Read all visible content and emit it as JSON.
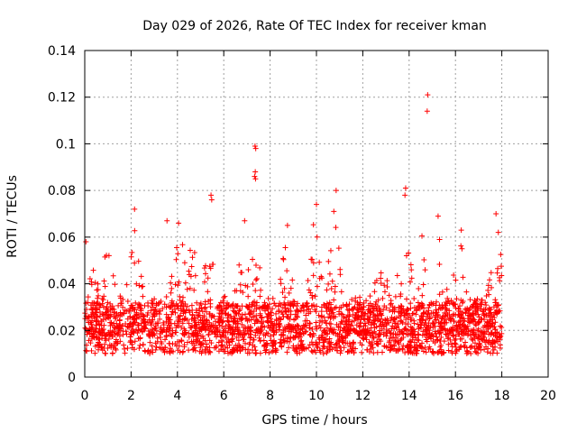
{
  "chart_data": {
    "type": "scatter",
    "title": "Day 029 of 2026, Rate Of TEC Index for receiver kman",
    "xlabel": "GPS time / hours",
    "ylabel": "ROTI / TECUs",
    "xlim": [
      0,
      20
    ],
    "ylim": [
      0,
      0.14
    ],
    "xticks": [
      "0",
      "2",
      "4",
      "6",
      "8",
      "10",
      "12",
      "14",
      "16",
      "18",
      "20"
    ],
    "yticks": [
      "0",
      "0.02",
      "0.04",
      "0.06",
      "0.08",
      "0.1",
      "0.12",
      "0.14"
    ],
    "grid": true,
    "marker": "+",
    "color": "#ff0000",
    "data_range_hours": [
      0,
      18
    ],
    "baseline_roti": 0.018,
    "typical_max_roti": 0.06,
    "notable_points": [
      {
        "x": 5.45,
        "y": 0.078
      },
      {
        "x": 5.48,
        "y": 0.076
      },
      {
        "x": 7.35,
        "y": 0.099
      },
      {
        "x": 7.38,
        "y": 0.098
      },
      {
        "x": 7.36,
        "y": 0.088
      },
      {
        "x": 7.33,
        "y": 0.086
      },
      {
        "x": 7.37,
        "y": 0.085
      },
      {
        "x": 10.85,
        "y": 0.08
      },
      {
        "x": 13.85,
        "y": 0.081
      },
      {
        "x": 13.82,
        "y": 0.078
      },
      {
        "x": 14.8,
        "y": 0.121
      },
      {
        "x": 14.78,
        "y": 0.114
      },
      {
        "x": 2.15,
        "y": 0.072
      },
      {
        "x": 10.0,
        "y": 0.074
      },
      {
        "x": 15.25,
        "y": 0.069
      },
      {
        "x": 17.75,
        "y": 0.07
      },
      {
        "x": 0.05,
        "y": 0.058
      },
      {
        "x": 3.55,
        "y": 0.067
      },
      {
        "x": 4.05,
        "y": 0.066
      },
      {
        "x": 6.9,
        "y": 0.067
      },
      {
        "x": 8.75,
        "y": 0.065
      },
      {
        "x": 10.75,
        "y": 0.071
      },
      {
        "x": 16.25,
        "y": 0.063
      },
      {
        "x": 17.85,
        "y": 0.062
      }
    ]
  }
}
